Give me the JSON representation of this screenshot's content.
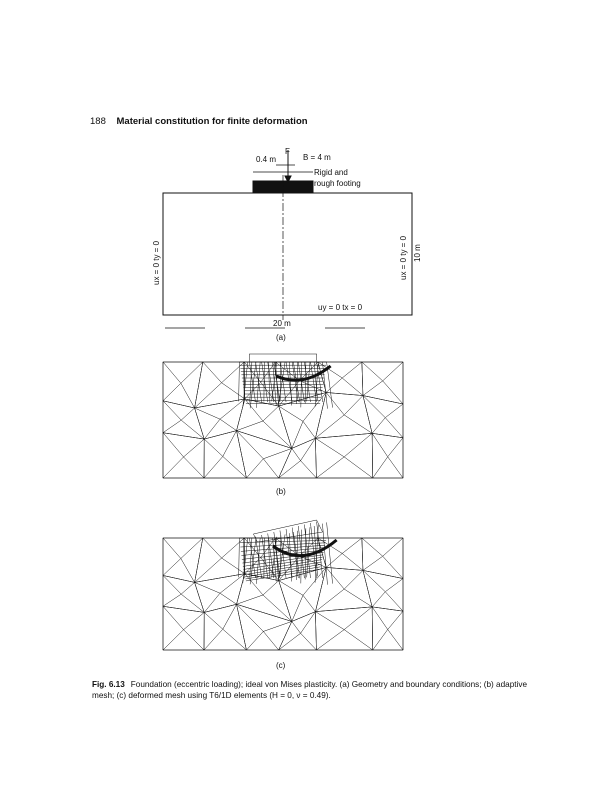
{
  "header": {
    "page_number": "188",
    "running_title": "Material constitution for finite deformation"
  },
  "figure_a": {
    "offset_label": "0.4 m",
    "load_label": "F",
    "width_label": "B = 4 m",
    "footing_label_1": "Rigid and",
    "footing_label_2": "rough footing",
    "left_bc": "ux = 0  ty = 0",
    "right_bc": "ux = 0  ty = 0",
    "bottom_bc": "uy = 0  tx = 0",
    "depth_label": "10 m",
    "length_label": "20 m",
    "panel_label": "(a)"
  },
  "figure_b": {
    "panel_label": "(b)"
  },
  "figure_c": {
    "panel_label": "(c)"
  },
  "caption": {
    "fig_number": "Fig. 6.13",
    "text": "Foundation (eccentric loading); ideal von Mises plasticity. (a) Geometry and boundary conditions; (b) adaptive mesh; (c) deformed mesh using T6/1D elements (H = 0, ν = 0.49)."
  }
}
